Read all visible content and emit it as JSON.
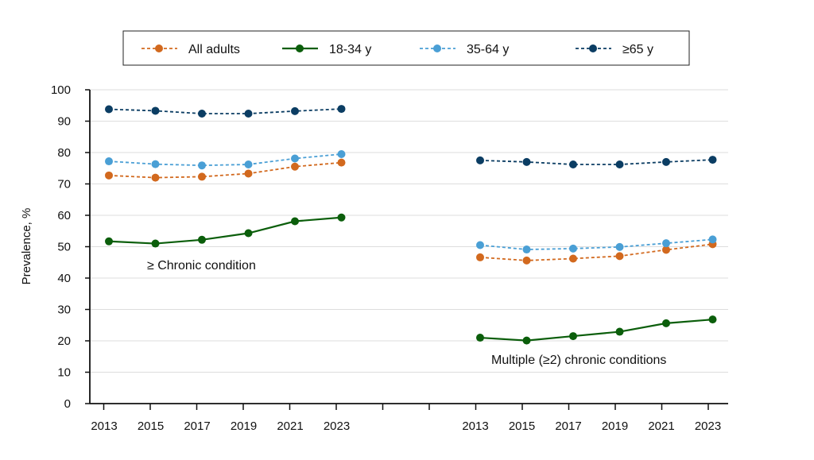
{
  "chart_data": {
    "type": "line",
    "ylabel": "Prevalence, %",
    "ylim": [
      0,
      100
    ],
    "yticks": [
      0,
      10,
      20,
      30,
      40,
      50,
      60,
      70,
      80,
      90,
      100
    ],
    "grid": "horizontal",
    "legend_position": "top-center",
    "x": [
      "2013",
      "2015",
      "2017",
      "2019",
      "2021",
      "2023"
    ],
    "panels": [
      {
        "label": "≥ Chronic condition",
        "series": [
          {
            "name": "All adults",
            "values": [
              72.7,
              72.0,
              72.3,
              73.3,
              75.5,
              76.8
            ]
          },
          {
            "name": "18-34 y",
            "values": [
              51.7,
              51.0,
              52.2,
              54.3,
              58.1,
              59.3
            ]
          },
          {
            "name": "35-64 y",
            "values": [
              77.2,
              76.3,
              75.9,
              76.2,
              78.1,
              79.5
            ]
          },
          {
            "name": "≥65 y",
            "values": [
              93.8,
              93.3,
              92.4,
              92.4,
              93.2,
              93.9
            ]
          }
        ]
      },
      {
        "label": "Multiple (≥2) chronic conditions",
        "series": [
          {
            "name": "All adults",
            "values": [
              46.6,
              45.6,
              46.2,
              47.0,
              49.0,
              50.8
            ]
          },
          {
            "name": "18-34 y",
            "values": [
              21.0,
              20.1,
              21.5,
              22.9,
              25.6,
              26.8
            ]
          },
          {
            "name": "35-64 y",
            "values": [
              50.5,
              49.1,
              49.4,
              49.9,
              51.1,
              52.3
            ]
          },
          {
            "name": "≥65 y",
            "values": [
              77.5,
              77.0,
              76.2,
              76.2,
              77.0,
              77.7
            ]
          }
        ]
      }
    ],
    "legend": [
      {
        "name": "All adults",
        "color": "#d2691e",
        "style": "dashed"
      },
      {
        "name": "18-34 y",
        "color": "#0b5e0b",
        "style": "solid"
      },
      {
        "name": "35-64 y",
        "color": "#4a9fd5",
        "style": "dashed"
      },
      {
        "name": "≥65 y",
        "color": "#0b3d63",
        "style": "dashed"
      }
    ]
  }
}
